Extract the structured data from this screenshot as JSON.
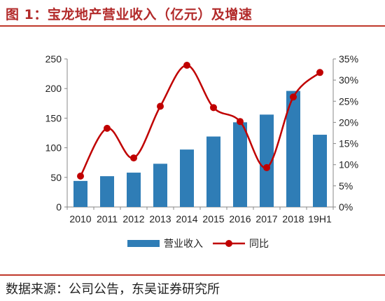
{
  "header": {
    "title": "图 1：宝龙地产营业收入（亿元）及增速"
  },
  "footer": {
    "source": "数据来源：公司公告，东吴证券研究所"
  },
  "colors": {
    "bar": "#2f7db6",
    "line": "#c00000",
    "accent": "#b22a2a"
  },
  "chart_data": {
    "type": "bar",
    "categories": [
      "2010",
      "2011",
      "2012",
      "2013",
      "2014",
      "2015",
      "2016",
      "2017",
      "2018",
      "19H1"
    ],
    "series": [
      {
        "name": "营业收入",
        "type": "bar",
        "axis": "left",
        "values": [
          44,
          52,
          58,
          73,
          97,
          119,
          143,
          156,
          196,
          122
        ]
      },
      {
        "name": "同比",
        "type": "line",
        "axis": "right",
        "values": [
          7.3,
          18.6,
          11.6,
          23.8,
          33.5,
          23.5,
          20.2,
          9.3,
          26.0,
          31.8
        ]
      }
    ],
    "ylim": [
      0,
      250
    ],
    "yticks": [
      "0",
      "50",
      "100",
      "150",
      "200",
      "250"
    ],
    "y2lim": [
      0,
      35
    ],
    "y2ticks": [
      "0%",
      "5%",
      "10%",
      "15%",
      "20%",
      "25%",
      "30%",
      "35%"
    ],
    "legend": {
      "position": "bottom",
      "items": [
        "营业收入",
        "同比"
      ]
    },
    "grid": false
  }
}
